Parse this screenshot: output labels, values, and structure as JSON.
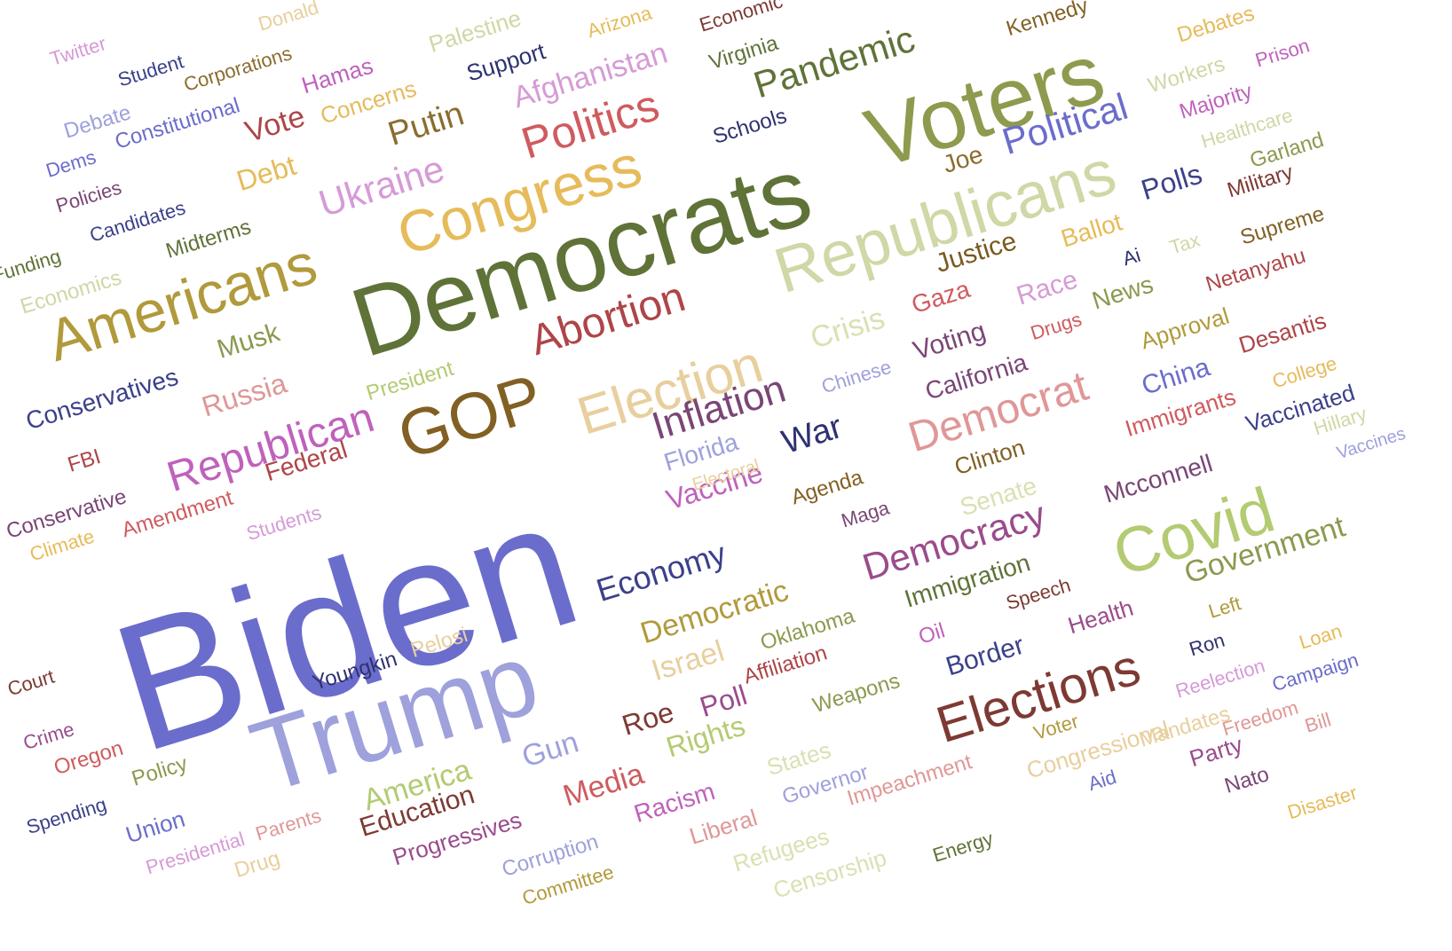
{
  "words": [
    {
      "text": "Biden",
      "color": "#6b6dcc"
    },
    {
      "text": "Democrats",
      "color": "#5f7338"
    },
    {
      "text": "Trump",
      "color": "#9ea1db"
    },
    {
      "text": "Voters",
      "color": "#8e9a4e"
    },
    {
      "text": "Republicans",
      "color": "#cfd8a6"
    },
    {
      "text": "Americans",
      "color": "#b19a3c"
    },
    {
      "text": "Congress",
      "color": "#e6bb5a"
    },
    {
      "text": "Covid",
      "color": "#b3cb72"
    },
    {
      "text": "GOP",
      "color": "#826024"
    },
    {
      "text": "Election",
      "color": "#e8cf9e"
    },
    {
      "text": "Elections",
      "color": "#7d3a33"
    },
    {
      "text": "Abortion",
      "color": "#ae4548"
    },
    {
      "text": "Politics",
      "color": "#cf5b5f"
    },
    {
      "text": "Republican",
      "color": "#bf62bc"
    },
    {
      "text": "Democrat",
      "color": "#e09797"
    },
    {
      "text": "Inflation",
      "color": "#7a4676"
    },
    {
      "text": "Democracy",
      "color": "#9a4c8c"
    },
    {
      "text": "Political",
      "color": "#6b6dcc"
    },
    {
      "text": "Ukraine",
      "color": "#d69bd6"
    },
    {
      "text": "Pandemic",
      "color": "#5f7338"
    },
    {
      "text": "Economy",
      "color": "#3b418a"
    },
    {
      "text": "Government",
      "color": "#8a9a4f"
    },
    {
      "text": "Democratic",
      "color": "#b19a3c"
    },
    {
      "text": "Afghanistan",
      "color": "#d69bd6"
    },
    {
      "text": "Crisis",
      "color": "#d9e1b3"
    },
    {
      "text": "War",
      "color": "#2e3270"
    },
    {
      "text": "Putin",
      "color": "#8b6d2e"
    },
    {
      "text": "Vote",
      "color": "#ae4548"
    },
    {
      "text": "America",
      "color": "#b3cb72"
    },
    {
      "text": "Gun",
      "color": "#9ea1db"
    },
    {
      "text": "Media",
      "color": "#cf5b5f"
    },
    {
      "text": "Rights",
      "color": "#b3cb72"
    },
    {
      "text": "Roe",
      "color": "#7d3a33"
    },
    {
      "text": "Poll",
      "color": "#9a4c8c"
    },
    {
      "text": "Israel",
      "color": "#e8cf9e"
    },
    {
      "text": "Immigration",
      "color": "#5f7338"
    },
    {
      "text": "Border",
      "color": "#3b418a"
    },
    {
      "text": "Justice",
      "color": "#7a5a20"
    },
    {
      "text": "Vaccine",
      "color": "#bf62bc"
    },
    {
      "text": "Florida",
      "color": "#9ea1db"
    },
    {
      "text": "Voting",
      "color": "#7a4676"
    },
    {
      "text": "Russia",
      "color": "#e09797"
    },
    {
      "text": "Debt",
      "color": "#e6bb5a"
    },
    {
      "text": "Polls",
      "color": "#3b418a"
    },
    {
      "text": "Musk",
      "color": "#8a9a4f"
    },
    {
      "text": "California",
      "color": "#7a4676"
    },
    {
      "text": "China",
      "color": "#6b6dcc"
    },
    {
      "text": "Senate",
      "color": "#d9e1b3"
    },
    {
      "text": "Education",
      "color": "#7d3a33"
    },
    {
      "text": "Conservatives",
      "color": "#3b418a"
    },
    {
      "text": "Joe",
      "color": "#8b6d2e"
    },
    {
      "text": "Race",
      "color": "#d69bd6"
    },
    {
      "text": "Gaza",
      "color": "#cf5b5f"
    },
    {
      "text": "News",
      "color": "#8a9a4f"
    },
    {
      "text": "Ballot",
      "color": "#e6bb5a"
    },
    {
      "text": "Federal",
      "color": "#ae4548"
    },
    {
      "text": "Clinton",
      "color": "#826024"
    },
    {
      "text": "Agenda",
      "color": "#826024"
    },
    {
      "text": "Health",
      "color": "#9a4c8c"
    },
    {
      "text": "Mcconnell",
      "color": "#7a4676"
    },
    {
      "text": "Vaccinated",
      "color": "#3b418a"
    },
    {
      "text": "Immigrants",
      "color": "#cf5b5f"
    },
    {
      "text": "Approval",
      "color": "#b19a3c"
    },
    {
      "text": "Desantis",
      "color": "#ae4548"
    },
    {
      "text": "Netanyahu",
      "color": "#ae4548"
    },
    {
      "text": "Supreme",
      "color": "#826024"
    },
    {
      "text": "Military",
      "color": "#7d3a33"
    },
    {
      "text": "Garland",
      "color": "#8a9a4f"
    },
    {
      "text": "Healthcare",
      "color": "#cfd8a6"
    },
    {
      "text": "Majority",
      "color": "#bf62bc"
    },
    {
      "text": "Workers",
      "color": "#cfd8a6"
    },
    {
      "text": "Prison",
      "color": "#bf62bc"
    },
    {
      "text": "Debates",
      "color": "#e6bb5a"
    },
    {
      "text": "Kennedy",
      "color": "#826024"
    },
    {
      "text": "Economic",
      "color": "#7d3a33"
    },
    {
      "text": "Virginia",
      "color": "#5f7338"
    },
    {
      "text": "Schools",
      "color": "#2e3270"
    },
    {
      "text": "Arizona",
      "color": "#e6bb5a"
    },
    {
      "text": "Palestine",
      "color": "#cfd8a6"
    },
    {
      "text": "Support",
      "color": "#2e3270"
    },
    {
      "text": "Hamas",
      "color": "#bf62bc"
    },
    {
      "text": "Concerns",
      "color": "#e6bb5a"
    },
    {
      "text": "Donald",
      "color": "#e8cf9e"
    },
    {
      "text": "Corporations",
      "color": "#8b6d2e"
    },
    {
      "text": "Twitter",
      "color": "#d69bd6"
    },
    {
      "text": "Student",
      "color": "#3b418a"
    },
    {
      "text": "Debate",
      "color": "#9ea1db"
    },
    {
      "text": "Constitutional",
      "color": "#6b6dcc"
    },
    {
      "text": "Dems",
      "color": "#6b6dcc"
    },
    {
      "text": "Policies",
      "color": "#7a4676"
    },
    {
      "text": "Candidates",
      "color": "#3b418a"
    },
    {
      "text": "Midterms",
      "color": "#5f7338"
    },
    {
      "text": "Funding",
      "color": "#5f7338"
    },
    {
      "text": "Economics",
      "color": "#cfd8a6"
    },
    {
      "text": "President",
      "color": "#b3cb72"
    },
    {
      "text": "FBI",
      "color": "#ae4548"
    },
    {
      "text": "Conservative",
      "color": "#7a4676"
    },
    {
      "text": "Amendment",
      "color": "#cf5b5f"
    },
    {
      "text": "Climate",
      "color": "#e6bb5a"
    },
    {
      "text": "Students",
      "color": "#d69bd6"
    },
    {
      "text": "Court",
      "color": "#7d3a33"
    },
    {
      "text": "Youngkin",
      "color": "#2e3270"
    },
    {
      "text": "Pelosi",
      "color": "#e8cf9e"
    },
    {
      "text": "Crime",
      "color": "#9a4c8c"
    },
    {
      "text": "Oregon",
      "color": "#cf5b5f"
    },
    {
      "text": "Policy",
      "color": "#8a9a4f"
    },
    {
      "text": "Spending",
      "color": "#3b418a"
    },
    {
      "text": "Union",
      "color": "#6b6dcc"
    },
    {
      "text": "Presidential",
      "color": "#d69bd6"
    },
    {
      "text": "Parents",
      "color": "#e09797"
    },
    {
      "text": "Drug",
      "color": "#e8cf9e"
    },
    {
      "text": "Progressives",
      "color": "#9a4c8c"
    },
    {
      "text": "Corruption",
      "color": "#9ea1db"
    },
    {
      "text": "Committee",
      "color": "#b19a3c"
    },
    {
      "text": "Racism",
      "color": "#bf62bc"
    },
    {
      "text": "Liberal",
      "color": "#e09797"
    },
    {
      "text": "States",
      "color": "#d9e1b3"
    },
    {
      "text": "Governor",
      "color": "#9ea1db"
    },
    {
      "text": "Refugees",
      "color": "#d9e1b3"
    },
    {
      "text": "Censorship",
      "color": "#d9e1b3"
    },
    {
      "text": "Impeachment",
      "color": "#e09797"
    },
    {
      "text": "Energy",
      "color": "#5f7338"
    },
    {
      "text": "Weapons",
      "color": "#8a9a4f"
    },
    {
      "text": "Oklahoma",
      "color": "#8a9a4f"
    },
    {
      "text": "Affiliation",
      "color": "#ae4548"
    },
    {
      "text": "Oil",
      "color": "#bf62bc"
    },
    {
      "text": "Speech",
      "color": "#7d3a33"
    },
    {
      "text": "Maga",
      "color": "#7a4676"
    },
    {
      "text": "Chinese",
      "color": "#9ea1db"
    },
    {
      "text": "Drugs",
      "color": "#cf5b5f"
    },
    {
      "text": "Ai",
      "color": "#2e3270"
    },
    {
      "text": "Tax",
      "color": "#cfd8a6"
    },
    {
      "text": "Voter",
      "color": "#b19a3c"
    },
    {
      "text": "Congressional",
      "color": "#e8cf9e"
    },
    {
      "text": "Aid",
      "color": "#6b6dcc"
    },
    {
      "text": "Mandates",
      "color": "#e8cf9e"
    },
    {
      "text": "Party",
      "color": "#9a4c8c"
    },
    {
      "text": "Nato",
      "color": "#7a4676"
    },
    {
      "text": "Freedom",
      "color": "#e09797"
    },
    {
      "text": "Bill",
      "color": "#e09797"
    },
    {
      "text": "Disaster",
      "color": "#e6bb5a"
    },
    {
      "text": "Reelection",
      "color": "#d69bd6"
    },
    {
      "text": "Campaign",
      "color": "#6b6dcc"
    },
    {
      "text": "Loan",
      "color": "#e6bb5a"
    },
    {
      "text": "Ron",
      "color": "#2e3270"
    },
    {
      "text": "Left",
      "color": "#b19a3c"
    },
    {
      "text": "College",
      "color": "#e6bb5a"
    },
    {
      "text": "Hillary",
      "color": "#cfd8a6"
    },
    {
      "text": "Vaccines",
      "color": "#9ea1db"
    },
    {
      "text": "Electoral",
      "color": "#e8cf9e"
    }
  ]
}
